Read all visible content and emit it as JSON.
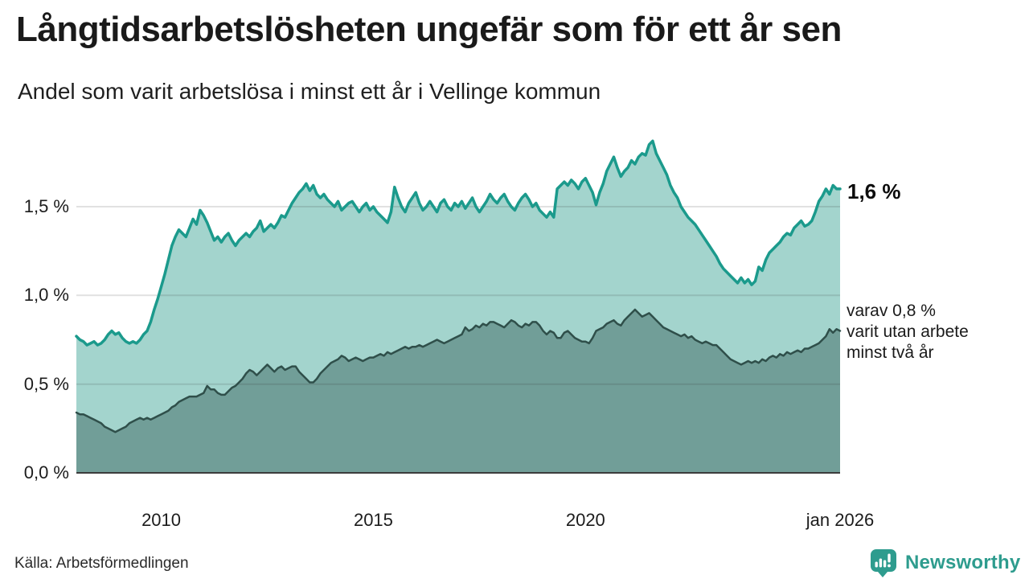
{
  "header": {
    "title": "Långtidsarbetslösheten ungefär som för ett år sen",
    "subtitle": "Andel som varit arbetslösa i minst ett år i Vellinge kommun"
  },
  "colors": {
    "accent_teal": "#1b9a8c",
    "area_light": "#a3d4cd",
    "area_dark": "#719e98",
    "line_dark": "#2f4f4a",
    "grid_rgba": "rgba(45,45,45,0.14)",
    "baseline": "#3c3c3c",
    "brand_teal": "#2e9c8e"
  },
  "chart_data": {
    "type": "area",
    "title": "Långtidsarbetslösheten ungefär som för ett år sen",
    "subtitle": "Andel som varit arbetslösa i minst ett år i Vellinge kommun",
    "x_start": "2008-01",
    "x_end": "2026-01",
    "x_interval": "monthly",
    "ylim": [
      0,
      1.95
    ],
    "grid": "horizontal",
    "legend_position": "none",
    "y_ticks": [
      {
        "label": "1,5 %",
        "value": 1.5
      },
      {
        "label": "1,0 %",
        "value": 1.0
      },
      {
        "label": "0,5 %",
        "value": 0.5
      },
      {
        "label": "0,0 %",
        "value": 0.0
      }
    ],
    "x_ticks": [
      {
        "label": "2010",
        "year": 2010
      },
      {
        "label": "2015",
        "year": 2015
      },
      {
        "label": "2020",
        "year": 2020
      },
      {
        "label": "jan 2026",
        "year": 2026
      }
    ],
    "series": [
      {
        "name": "Andel arbetslösa minst ett år",
        "stroke": "#1b9a8c",
        "fill": "#a3d4cd",
        "stroke_width": 3.5,
        "values": [
          0.77,
          0.75,
          0.74,
          0.72,
          0.73,
          0.74,
          0.72,
          0.73,
          0.75,
          0.78,
          0.8,
          0.78,
          0.79,
          0.76,
          0.74,
          0.73,
          0.74,
          0.73,
          0.75,
          0.78,
          0.8,
          0.85,
          0.92,
          0.98,
          1.05,
          1.12,
          1.2,
          1.28,
          1.33,
          1.37,
          1.35,
          1.33,
          1.38,
          1.43,
          1.4,
          1.48,
          1.45,
          1.41,
          1.36,
          1.31,
          1.33,
          1.3,
          1.33,
          1.35,
          1.31,
          1.28,
          1.31,
          1.33,
          1.35,
          1.33,
          1.36,
          1.38,
          1.42,
          1.36,
          1.38,
          1.4,
          1.38,
          1.41,
          1.45,
          1.44,
          1.48,
          1.52,
          1.55,
          1.58,
          1.6,
          1.63,
          1.59,
          1.62,
          1.57,
          1.55,
          1.57,
          1.54,
          1.52,
          1.5,
          1.53,
          1.48,
          1.5,
          1.52,
          1.53,
          1.5,
          1.47,
          1.5,
          1.52,
          1.48,
          1.5,
          1.47,
          1.45,
          1.43,
          1.41,
          1.47,
          1.61,
          1.55,
          1.5,
          1.47,
          1.52,
          1.55,
          1.58,
          1.52,
          1.48,
          1.5,
          1.53,
          1.5,
          1.47,
          1.52,
          1.54,
          1.5,
          1.48,
          1.52,
          1.5,
          1.53,
          1.49,
          1.52,
          1.55,
          1.5,
          1.47,
          1.5,
          1.53,
          1.57,
          1.54,
          1.52,
          1.55,
          1.57,
          1.53,
          1.5,
          1.48,
          1.52,
          1.55,
          1.57,
          1.54,
          1.5,
          1.52,
          1.48,
          1.46,
          1.44,
          1.47,
          1.44,
          1.6,
          1.62,
          1.64,
          1.62,
          1.65,
          1.63,
          1.6,
          1.64,
          1.66,
          1.62,
          1.58,
          1.51,
          1.58,
          1.63,
          1.7,
          1.74,
          1.78,
          1.72,
          1.67,
          1.7,
          1.72,
          1.76,
          1.74,
          1.78,
          1.8,
          1.79,
          1.85,
          1.87,
          1.8,
          1.76,
          1.72,
          1.68,
          1.62,
          1.58,
          1.55,
          1.5,
          1.47,
          1.44,
          1.42,
          1.4,
          1.37,
          1.34,
          1.31,
          1.28,
          1.25,
          1.22,
          1.18,
          1.15,
          1.13,
          1.11,
          1.09,
          1.07,
          1.1,
          1.07,
          1.09,
          1.06,
          1.08,
          1.16,
          1.14,
          1.2,
          1.24,
          1.26,
          1.28,
          1.3,
          1.33,
          1.35,
          1.34,
          1.38,
          1.4,
          1.42,
          1.39,
          1.4,
          1.42,
          1.47,
          1.53,
          1.56,
          1.6,
          1.57,
          1.62,
          1.6,
          1.6
        ]
      },
      {
        "name": "Andel arbetslösa minst två år",
        "stroke": "#2f4f4a",
        "fill": "#719e98",
        "stroke_width": 2.5,
        "values": [
          0.34,
          0.33,
          0.33,
          0.32,
          0.31,
          0.3,
          0.29,
          0.28,
          0.26,
          0.25,
          0.24,
          0.23,
          0.24,
          0.25,
          0.26,
          0.28,
          0.29,
          0.3,
          0.31,
          0.3,
          0.31,
          0.3,
          0.31,
          0.32,
          0.33,
          0.34,
          0.35,
          0.37,
          0.38,
          0.4,
          0.41,
          0.42,
          0.43,
          0.43,
          0.43,
          0.44,
          0.45,
          0.49,
          0.47,
          0.47,
          0.45,
          0.44,
          0.44,
          0.46,
          0.48,
          0.49,
          0.51,
          0.53,
          0.56,
          0.58,
          0.57,
          0.55,
          0.57,
          0.59,
          0.61,
          0.59,
          0.57,
          0.59,
          0.6,
          0.58,
          0.59,
          0.6,
          0.6,
          0.57,
          0.55,
          0.53,
          0.51,
          0.51,
          0.53,
          0.56,
          0.58,
          0.6,
          0.62,
          0.63,
          0.64,
          0.66,
          0.65,
          0.63,
          0.64,
          0.65,
          0.64,
          0.63,
          0.64,
          0.65,
          0.65,
          0.66,
          0.67,
          0.66,
          0.68,
          0.67,
          0.68,
          0.69,
          0.7,
          0.71,
          0.7,
          0.71,
          0.71,
          0.72,
          0.71,
          0.72,
          0.73,
          0.74,
          0.75,
          0.74,
          0.73,
          0.74,
          0.75,
          0.76,
          0.77,
          0.78,
          0.82,
          0.8,
          0.81,
          0.83,
          0.82,
          0.84,
          0.83,
          0.85,
          0.85,
          0.84,
          0.83,
          0.82,
          0.84,
          0.86,
          0.85,
          0.83,
          0.82,
          0.84,
          0.83,
          0.85,
          0.85,
          0.83,
          0.8,
          0.78,
          0.8,
          0.79,
          0.76,
          0.76,
          0.79,
          0.8,
          0.78,
          0.76,
          0.75,
          0.74,
          0.74,
          0.73,
          0.76,
          0.8,
          0.81,
          0.82,
          0.84,
          0.85,
          0.86,
          0.84,
          0.83,
          0.86,
          0.88,
          0.9,
          0.92,
          0.9,
          0.88,
          0.89,
          0.9,
          0.88,
          0.86,
          0.84,
          0.82,
          0.81,
          0.8,
          0.79,
          0.78,
          0.77,
          0.78,
          0.76,
          0.77,
          0.75,
          0.74,
          0.73,
          0.74,
          0.73,
          0.72,
          0.72,
          0.7,
          0.68,
          0.66,
          0.64,
          0.63,
          0.62,
          0.61,
          0.62,
          0.63,
          0.62,
          0.63,
          0.62,
          0.64,
          0.63,
          0.65,
          0.66,
          0.65,
          0.67,
          0.66,
          0.68,
          0.67,
          0.68,
          0.69,
          0.68,
          0.7,
          0.7,
          0.71,
          0.72,
          0.73,
          0.75,
          0.77,
          0.81,
          0.79,
          0.81,
          0.8
        ]
      }
    ],
    "annotations": {
      "last_value_label": "1,6 %",
      "secondary_label_lines": [
        "varav 0,8 %",
        "varit utan arbete",
        "minst två år"
      ]
    }
  },
  "footer": {
    "source": "Källa: Arbetsförmedlingen",
    "brand": "Newsworthy"
  }
}
